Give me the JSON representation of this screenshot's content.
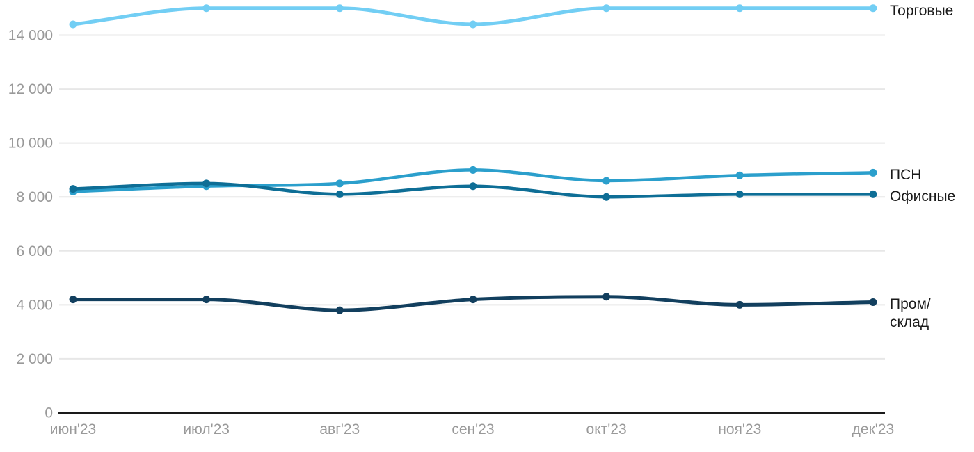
{
  "chart_data": {
    "type": "line",
    "title": "",
    "xlabel": "",
    "ylabel": "",
    "categories": [
      "июн'23",
      "июл'23",
      "авг'23",
      "сен'23",
      "окт'23",
      "ноя'23",
      "дек'23"
    ],
    "series": [
      {
        "name": "Торговые",
        "color": "#72CEF4",
        "stroke_width": 5,
        "values": [
          14400,
          15000,
          15000,
          14400,
          15000,
          15000,
          15000
        ]
      },
      {
        "name": "ПСН",
        "color": "#2B9FCC",
        "stroke_width": 4.5,
        "values": [
          8200,
          8400,
          8500,
          9000,
          8600,
          8800,
          8900
        ]
      },
      {
        "name": "Офисные",
        "color": "#0E6E96",
        "stroke_width": 4.5,
        "values": [
          8300,
          8500,
          8100,
          8400,
          8000,
          8100,
          8100
        ]
      },
      {
        "name": "Пром/\nсклад",
        "color": "#123F5E",
        "stroke_width": 5,
        "values": [
          4200,
          4200,
          3800,
          4200,
          4300,
          4000,
          4100
        ]
      }
    ],
    "y_ticks": [
      {
        "value": 0,
        "label": "0"
      },
      {
        "value": 2000,
        "label": "2 000"
      },
      {
        "value": 4000,
        "label": "4 000"
      },
      {
        "value": 6000,
        "label": "6 000"
      },
      {
        "value": 8000,
        "label": "8 000"
      },
      {
        "value": 10000,
        "label": "10 000"
      },
      {
        "value": 12000,
        "label": "12 000"
      },
      {
        "value": 14000,
        "label": "14 000"
      }
    ],
    "ylim": [
      0,
      15300
    ],
    "grid": true,
    "legend_position": "right-of-line-end",
    "colors": {
      "grid": "#E7E7E7",
      "axis": "#1A1A1A",
      "tick_label": "#999999",
      "series_label": "#1A1A1A",
      "background": "#FFFFFF"
    }
  }
}
